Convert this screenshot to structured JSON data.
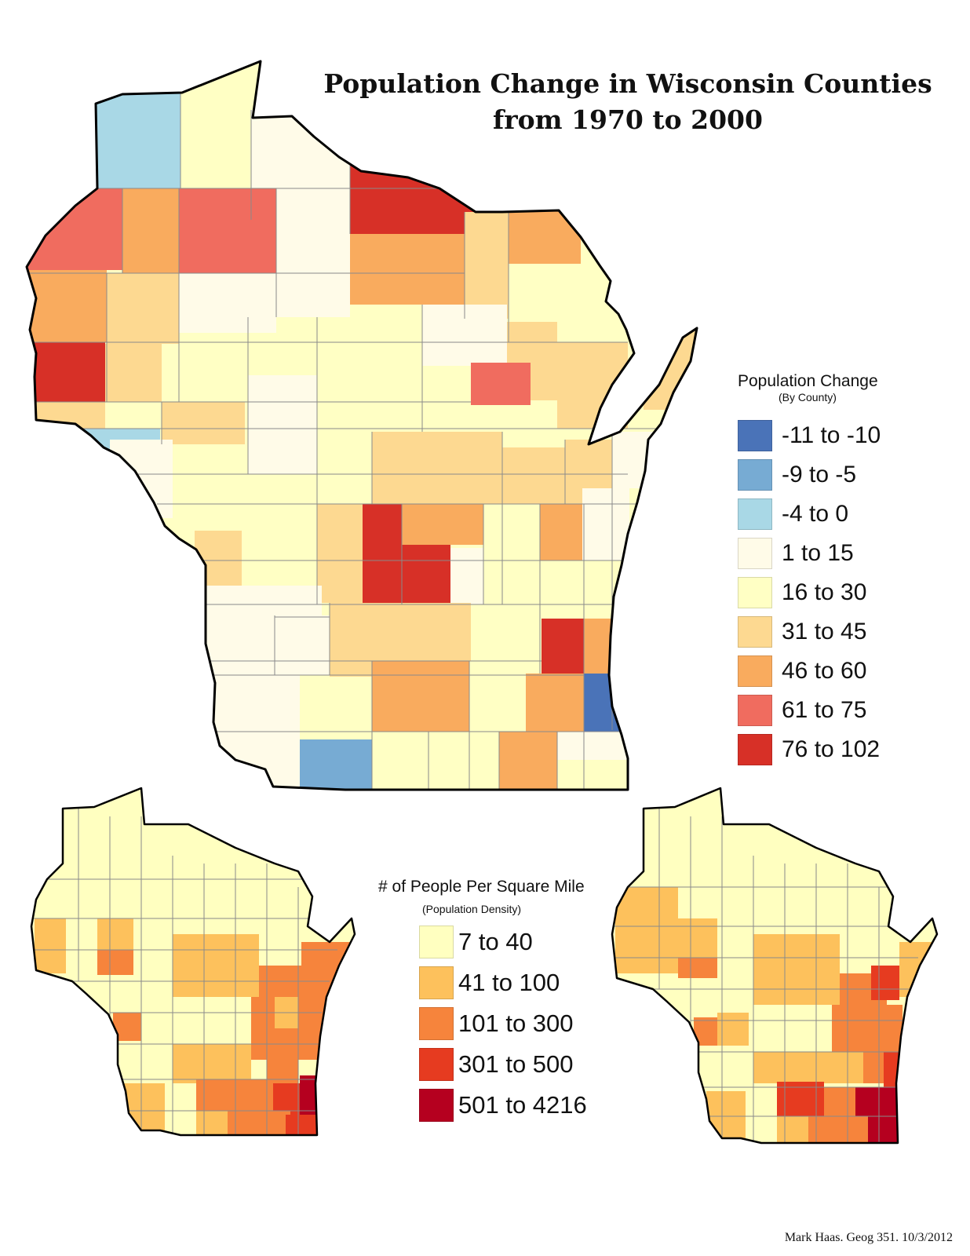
{
  "title": {
    "line1": "Population Change in Wisconsin Counties",
    "line2": "from 1970 to 2000"
  },
  "legend_change": {
    "title": "Population Change",
    "subtitle": "(By County)",
    "classes": [
      {
        "label": "-11 to -10",
        "color": "#4a73b8"
      },
      {
        "label": "-9 to -5",
        "color": "#77abd3"
      },
      {
        "label": "-4 to 0",
        "color": "#a9d8e6"
      },
      {
        "label": "1 to 15",
        "color": "#fffbe8"
      },
      {
        "label": "16 to 30",
        "color": "#ffffc4"
      },
      {
        "label": "31 to 45",
        "color": "#fdd991"
      },
      {
        "label": "46 to 60",
        "color": "#f9ab5e"
      },
      {
        "label": "61 to 75",
        "color": "#f06c5f"
      },
      {
        "label": "76 to 102",
        "color": "#d73027"
      }
    ]
  },
  "legend_density": {
    "title": "# of People Per Square Mile",
    "subtitle": "(Population Density)",
    "classes": [
      {
        "label": "7 to 40",
        "color": "#ffffc0"
      },
      {
        "label": "41 to 100",
        "color": "#fdc15c"
      },
      {
        "label": "101 to 300",
        "color": "#f6843c"
      },
      {
        "label": "301 to 500",
        "color": "#e63b20"
      },
      {
        "label": "501 to 4216",
        "color": "#b5001f"
      }
    ]
  },
  "credit": "Mark Haas. Geog 351. 10/3/2012",
  "colors": {
    "outline": "#000000",
    "county_border": "#888888"
  }
}
